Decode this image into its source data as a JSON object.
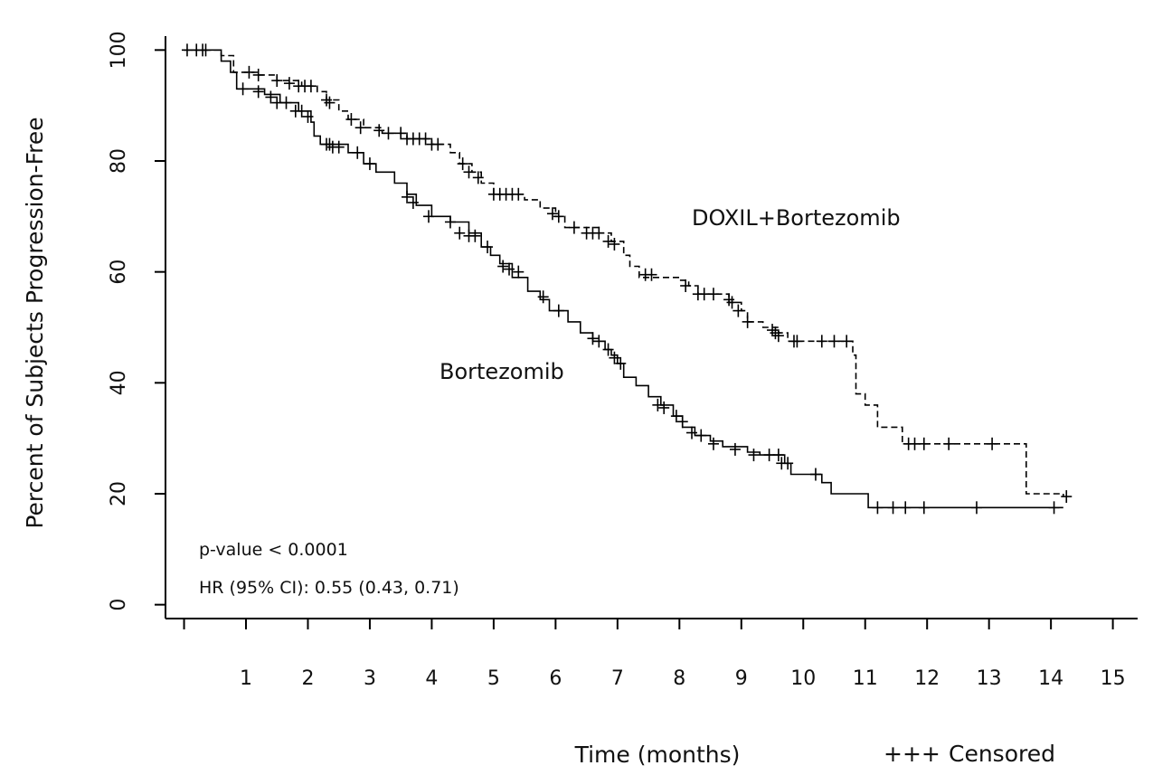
{
  "chart_data": {
    "type": "line",
    "xlabel": "Time (months)",
    "ylabel": "Percent of Subjects Progression-Free",
    "xlim": [
      -0.3,
      15.4
    ],
    "ylim": [
      -2.5,
      102.5
    ],
    "x_ticks": [
      1,
      2,
      3,
      4,
      5,
      6,
      7,
      8,
      9,
      10,
      11,
      12,
      13,
      14,
      15
    ],
    "y_ticks": [
      0,
      20,
      40,
      60,
      80,
      100
    ],
    "grid": false,
    "annotations": [
      "p-value < 0.0001",
      "HR (95% CI): 0.55 (0.43, 0.71)"
    ],
    "legend": {
      "symbol": "+++",
      "label": "Censored",
      "placement": "bottom-right"
    },
    "series": [
      {
        "name": "DOXIL+Bortezomib",
        "style": "dashed",
        "color": "#000000",
        "steps": [
          [
            0,
            100
          ],
          [
            0.6,
            99
          ],
          [
            0.8,
            96
          ],
          [
            1.2,
            95.5
          ],
          [
            1.5,
            94.5
          ],
          [
            1.9,
            93.5
          ],
          [
            2.15,
            92.5
          ],
          [
            2.3,
            91
          ],
          [
            2.5,
            89
          ],
          [
            2.65,
            87.5
          ],
          [
            2.9,
            86
          ],
          [
            3.2,
            85
          ],
          [
            3.6,
            84
          ],
          [
            4.0,
            83
          ],
          [
            4.3,
            81.5
          ],
          [
            4.45,
            79.5
          ],
          [
            4.65,
            78
          ],
          [
            4.8,
            76
          ],
          [
            5.0,
            74
          ],
          [
            5.5,
            73
          ],
          [
            5.75,
            71.5
          ],
          [
            6.0,
            70
          ],
          [
            6.15,
            68
          ],
          [
            6.7,
            67
          ],
          [
            6.9,
            65.5
          ],
          [
            7.1,
            63
          ],
          [
            7.2,
            61
          ],
          [
            7.35,
            59
          ],
          [
            8.0,
            58.5
          ],
          [
            8.15,
            57.5
          ],
          [
            8.3,
            56
          ],
          [
            8.8,
            54.5
          ],
          [
            9.0,
            53
          ],
          [
            9.1,
            51
          ],
          [
            9.35,
            50
          ],
          [
            9.6,
            49
          ],
          [
            9.75,
            47.5
          ],
          [
            10.8,
            45
          ],
          [
            10.85,
            38
          ],
          [
            11.0,
            36
          ],
          [
            11.2,
            32
          ],
          [
            11.6,
            29
          ],
          [
            13.6,
            20
          ],
          [
            14.2,
            19.5
          ]
        ],
        "censored": [
          [
            0.05,
            100
          ],
          [
            0.2,
            100
          ],
          [
            0.3,
            100
          ],
          [
            0.35,
            100
          ],
          [
            1.05,
            96
          ],
          [
            1.2,
            95.5
          ],
          [
            1.5,
            94.5
          ],
          [
            1.7,
            94
          ],
          [
            1.85,
            93.5
          ],
          [
            1.95,
            93.5
          ],
          [
            2.05,
            93.5
          ],
          [
            2.3,
            91
          ],
          [
            2.35,
            90.5
          ],
          [
            2.7,
            87.5
          ],
          [
            2.85,
            86
          ],
          [
            3.15,
            85.5
          ],
          [
            3.3,
            85
          ],
          [
            3.5,
            85
          ],
          [
            3.6,
            84
          ],
          [
            3.7,
            84
          ],
          [
            3.8,
            84
          ],
          [
            3.9,
            84
          ],
          [
            4.0,
            83
          ],
          [
            4.1,
            83
          ],
          [
            4.5,
            79.5
          ],
          [
            4.6,
            78
          ],
          [
            4.75,
            77
          ],
          [
            5.0,
            74
          ],
          [
            5.1,
            74
          ],
          [
            5.2,
            74
          ],
          [
            5.3,
            74
          ],
          [
            5.4,
            74
          ],
          [
            5.95,
            70.5
          ],
          [
            6.05,
            70
          ],
          [
            6.3,
            68
          ],
          [
            6.5,
            67
          ],
          [
            6.6,
            67
          ],
          [
            6.7,
            67
          ],
          [
            6.85,
            65.5
          ],
          [
            6.95,
            65
          ],
          [
            7.45,
            59.5
          ],
          [
            7.55,
            59.5
          ],
          [
            8.1,
            57.5
          ],
          [
            8.3,
            56
          ],
          [
            8.4,
            56
          ],
          [
            8.55,
            56
          ],
          [
            8.8,
            55
          ],
          [
            8.85,
            54.5
          ],
          [
            8.95,
            53
          ],
          [
            9.1,
            51
          ],
          [
            9.5,
            49.5
          ],
          [
            9.55,
            49
          ],
          [
            9.6,
            48.5
          ],
          [
            9.85,
            47.5
          ],
          [
            9.9,
            47.5
          ],
          [
            10.3,
            47.5
          ],
          [
            10.5,
            47.5
          ],
          [
            10.7,
            47.5
          ],
          [
            11.7,
            29
          ],
          [
            11.8,
            29
          ],
          [
            11.95,
            29
          ],
          [
            12.35,
            29
          ],
          [
            13.05,
            29
          ],
          [
            14.25,
            19.5
          ]
        ]
      },
      {
        "name": "Bortezomib",
        "style": "solid",
        "color": "#000000",
        "steps": [
          [
            0,
            100
          ],
          [
            0.6,
            98
          ],
          [
            0.75,
            96
          ],
          [
            0.85,
            93
          ],
          [
            1.3,
            92
          ],
          [
            1.55,
            90.5
          ],
          [
            1.85,
            89
          ],
          [
            2.05,
            87
          ],
          [
            2.1,
            84.5
          ],
          [
            2.2,
            83
          ],
          [
            2.65,
            81.5
          ],
          [
            2.9,
            79.5
          ],
          [
            3.1,
            78
          ],
          [
            3.4,
            76
          ],
          [
            3.6,
            74
          ],
          [
            3.75,
            72
          ],
          [
            4.0,
            70
          ],
          [
            4.3,
            69
          ],
          [
            4.6,
            67
          ],
          [
            4.8,
            64.5
          ],
          [
            4.95,
            63
          ],
          [
            5.1,
            61.5
          ],
          [
            5.3,
            59
          ],
          [
            5.55,
            56.5
          ],
          [
            5.75,
            55
          ],
          [
            5.9,
            53
          ],
          [
            6.2,
            51
          ],
          [
            6.4,
            49
          ],
          [
            6.6,
            47.5
          ],
          [
            6.8,
            46
          ],
          [
            6.9,
            45
          ],
          [
            7.0,
            43.5
          ],
          [
            7.1,
            41
          ],
          [
            7.3,
            39.5
          ],
          [
            7.5,
            37.5
          ],
          [
            7.7,
            36
          ],
          [
            7.9,
            34
          ],
          [
            8.05,
            32
          ],
          [
            8.25,
            30.5
          ],
          [
            8.5,
            29.5
          ],
          [
            8.7,
            28.5
          ],
          [
            9.1,
            27.5
          ],
          [
            9.3,
            27
          ],
          [
            9.7,
            25.5
          ],
          [
            9.8,
            23.5
          ],
          [
            10.3,
            22
          ],
          [
            10.45,
            20
          ],
          [
            11.05,
            17.5
          ],
          [
            14.2,
            17.5
          ]
        ],
        "censored": [
          [
            0.95,
            93
          ],
          [
            1.2,
            92.5
          ],
          [
            1.4,
            91.5
          ],
          [
            1.5,
            90.5
          ],
          [
            1.65,
            90.5
          ],
          [
            1.8,
            89
          ],
          [
            1.9,
            89
          ],
          [
            2.0,
            88
          ],
          [
            2.3,
            83
          ],
          [
            2.35,
            83
          ],
          [
            2.4,
            82.5
          ],
          [
            2.5,
            82.5
          ],
          [
            2.8,
            81.5
          ],
          [
            3.0,
            79.5
          ],
          [
            3.6,
            73.5
          ],
          [
            3.7,
            72.5
          ],
          [
            3.95,
            70
          ],
          [
            4.3,
            69
          ],
          [
            4.45,
            67
          ],
          [
            4.6,
            66.5
          ],
          [
            4.7,
            66.5
          ],
          [
            4.9,
            64.5
          ],
          [
            5.15,
            61
          ],
          [
            5.25,
            60.5
          ],
          [
            5.4,
            60
          ],
          [
            5.8,
            55.5
          ],
          [
            6.05,
            53
          ],
          [
            6.6,
            48
          ],
          [
            6.7,
            47.5
          ],
          [
            6.85,
            46
          ],
          [
            6.95,
            44.5
          ],
          [
            7.05,
            43.5
          ],
          [
            7.65,
            36
          ],
          [
            7.75,
            35.5
          ],
          [
            7.95,
            34
          ],
          [
            8.05,
            33
          ],
          [
            8.2,
            31
          ],
          [
            8.35,
            30.5
          ],
          [
            8.55,
            29
          ],
          [
            8.9,
            28
          ],
          [
            9.2,
            27
          ],
          [
            9.45,
            27
          ],
          [
            9.6,
            27
          ],
          [
            9.65,
            25.5
          ],
          [
            9.75,
            25.5
          ],
          [
            10.2,
            23.5
          ],
          [
            11.2,
            17.5
          ],
          [
            11.45,
            17.5
          ],
          [
            11.65,
            17.5
          ],
          [
            11.95,
            17.5
          ],
          [
            12.8,
            17.5
          ],
          [
            14.05,
            17.5
          ]
        ]
      }
    ]
  }
}
